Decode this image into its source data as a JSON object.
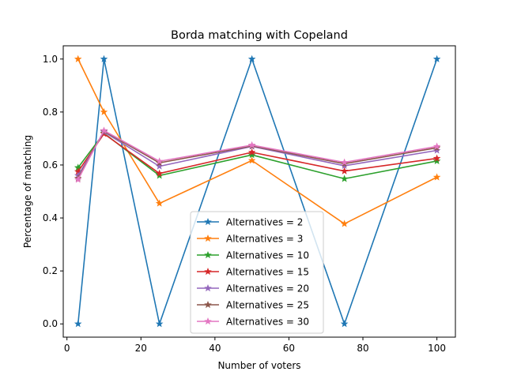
{
  "chart_data": {
    "type": "line",
    "title": "Borda matching with Copeland",
    "xlabel": "Number of voters",
    "ylabel": "Percentage of matching",
    "x": [
      3,
      10,
      25,
      50,
      75,
      100
    ],
    "xlim": [
      -1,
      105
    ],
    "ylim": [
      -0.05,
      1.05
    ],
    "xticks": [
      0,
      20,
      40,
      60,
      80,
      100
    ],
    "yticks": [
      0.0,
      0.2,
      0.4,
      0.6,
      0.8,
      1.0
    ],
    "xtick_labels": [
      "0",
      "20",
      "40",
      "60",
      "80",
      "100"
    ],
    "ytick_labels": [
      "0.0",
      "0.2",
      "0.4",
      "0.6",
      "0.8",
      "1.0"
    ],
    "grid": false,
    "legend_position": "lower-center",
    "marker": "star",
    "series": [
      {
        "name": "Alternatives = 2",
        "color": "#1f77b4",
        "values": [
          0.0,
          1.0,
          0.0,
          1.0,
          0.0,
          1.0
        ]
      },
      {
        "name": "Alternatives = 3",
        "color": "#ff7f0e",
        "values": [
          1.0,
          0.8,
          0.455,
          0.617,
          0.378,
          0.554
        ]
      },
      {
        "name": "Alternatives = 10",
        "color": "#2ca02c",
        "values": [
          0.59,
          0.72,
          0.56,
          0.638,
          0.548,
          0.615
        ]
      },
      {
        "name": "Alternatives = 15",
        "color": "#d62728",
        "values": [
          0.575,
          0.718,
          0.568,
          0.648,
          0.577,
          0.625
        ]
      },
      {
        "name": "Alternatives = 20",
        "color": "#9467bd",
        "values": [
          0.56,
          0.725,
          0.595,
          0.67,
          0.597,
          0.655
        ]
      },
      {
        "name": "Alternatives = 25",
        "color": "#8c564b",
        "values": [
          0.55,
          0.728,
          0.608,
          0.672,
          0.605,
          0.665
        ]
      },
      {
        "name": "Alternatives = 30",
        "color": "#e377c2",
        "values": [
          0.545,
          0.73,
          0.614,
          0.675,
          0.61,
          0.67
        ]
      }
    ]
  }
}
